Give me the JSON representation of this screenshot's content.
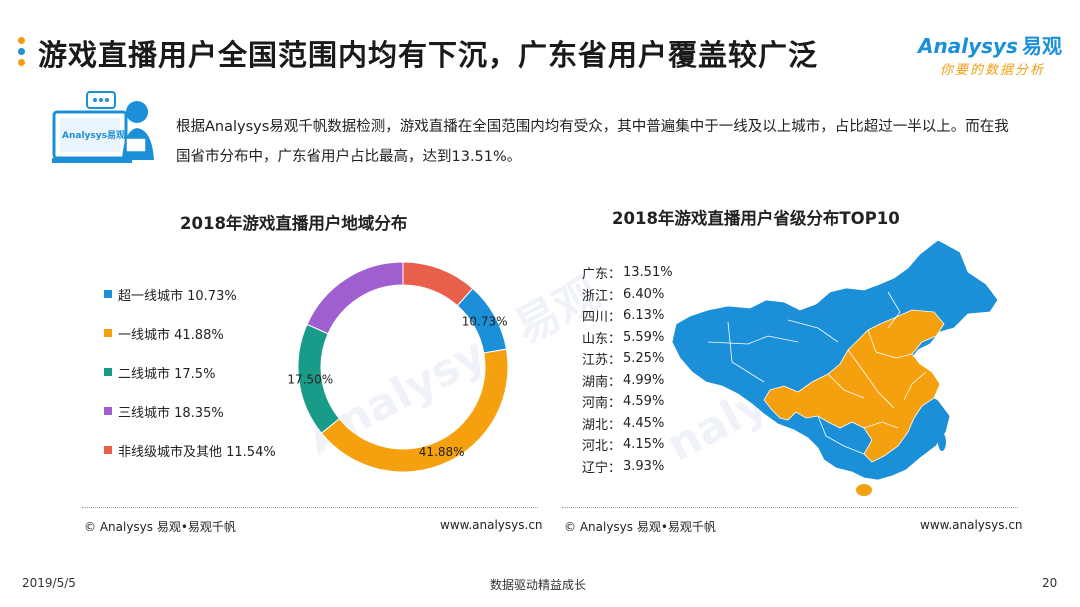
{
  "header": {
    "title": "游戏直播用户全国范围内均有下沉，广东省用户覆盖较广泛",
    "dot_colors": [
      "#f39c12",
      "#1b8fd8",
      "#f39c12"
    ]
  },
  "brand": {
    "name": "Analysys",
    "name_cn": "易观",
    "slogan": "你要的数据分析",
    "color": "#1b8fd8",
    "slogan_color": "#f39c12"
  },
  "illustration": {
    "label": "Analysys易观"
  },
  "summary": {
    "text": "根据Analysys易观千帆数据检测，游戏直播在全国范围内均有受众，其中普遍集中于一线及以上城市，占比超过一半以上。而在我国省市分布中，广东省用户占比最高，达到13.51%。"
  },
  "chart_data": [
    {
      "type": "pie",
      "title": "2018年游戏直播用户地域分布",
      "categories": [
        "超一线城市",
        "一线城市",
        "二线城市",
        "三线城市",
        "非线级城市及其他"
      ],
      "values": [
        10.73,
        41.88,
        17.5,
        18.35,
        11.54
      ],
      "legend_labels": [
        "超一线城市 10.73%",
        "一线城市 41.88%",
        "二线城市 17.5%",
        "三线城市 18.35%",
        "非线级城市及其他 11.54%"
      ],
      "data_labels": [
        "10.73%",
        "41.88%",
        "17.50%",
        "",
        ""
      ],
      "colors": [
        "#1b8fd8",
        "#f5a00f",
        "#199b8a",
        "#a05fd0",
        "#e8604c"
      ],
      "donut": true,
      "legend_position": "left"
    },
    {
      "type": "table",
      "title": "2018年游戏直播用户省级分布TOP10",
      "rows": [
        {
          "province": "广东：",
          "value": "13.51%"
        },
        {
          "province": "浙江：",
          "value": "6.40%"
        },
        {
          "province": "四川：",
          "value": "6.13%"
        },
        {
          "province": "山东：",
          "value": "5.59%"
        },
        {
          "province": "江苏：",
          "value": "5.25%"
        },
        {
          "province": "湖南：",
          "value": "4.99%"
        },
        {
          "province": "河南：",
          "value": "4.59%"
        },
        {
          "province": "湖北：",
          "value": "4.45%"
        },
        {
          "province": "河北：",
          "value": "4.15%"
        },
        {
          "province": "辽宁：",
          "value": "3.93%"
        }
      ],
      "map_colors": {
        "base": "#1b8fd8",
        "highlight": "#f5a00f"
      }
    }
  ],
  "footer": {
    "left_source": "© Analysys 易观•易观千帆",
    "left_url": "www.analysys.cn",
    "right_source": "© Analysys 易观•易观千帆",
    "right_url": "www.analysys.cn"
  },
  "bottom": {
    "date": "2019/5/5",
    "center": "数据驱动精益成长",
    "page": "20"
  }
}
